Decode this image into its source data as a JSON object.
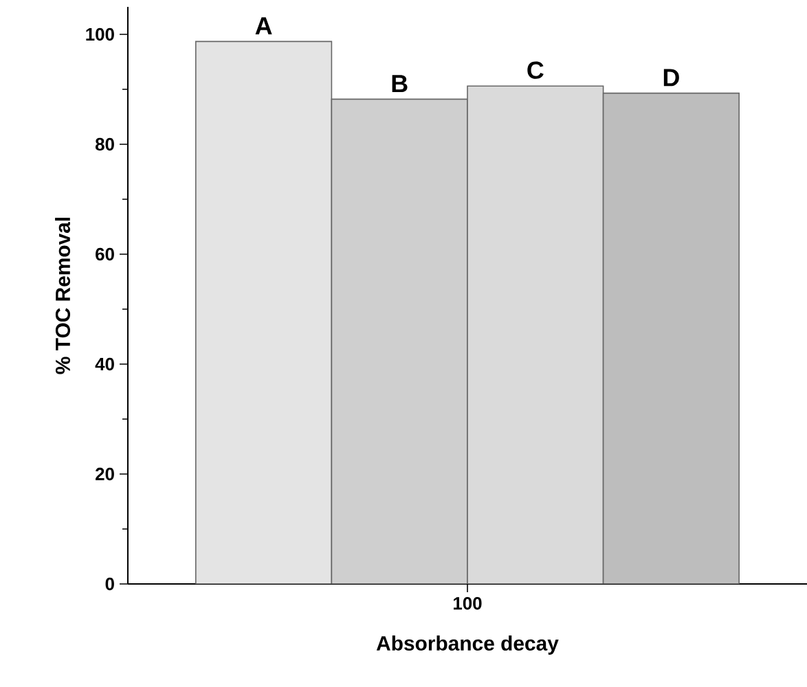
{
  "chart_data": {
    "type": "bar",
    "xlabel": "Absorbance decay",
    "ylabel": "% TOC Removal",
    "categories": [
      "100"
    ],
    "series": [
      {
        "name": "A",
        "color": "#e4e4e4",
        "values": [
          98.7
        ]
      },
      {
        "name": "B",
        "color": "#cfcfcf",
        "values": [
          88.2
        ]
      },
      {
        "name": "C",
        "color": "#dadada",
        "values": [
          90.6
        ]
      },
      {
        "name": "D",
        "color": "#bdbdbd",
        "values": [
          89.3
        ]
      }
    ],
    "ylim": [
      0,
      105
    ],
    "yticks": [
      0,
      20,
      40,
      60,
      80,
      100
    ],
    "legend": false,
    "grid": false
  }
}
